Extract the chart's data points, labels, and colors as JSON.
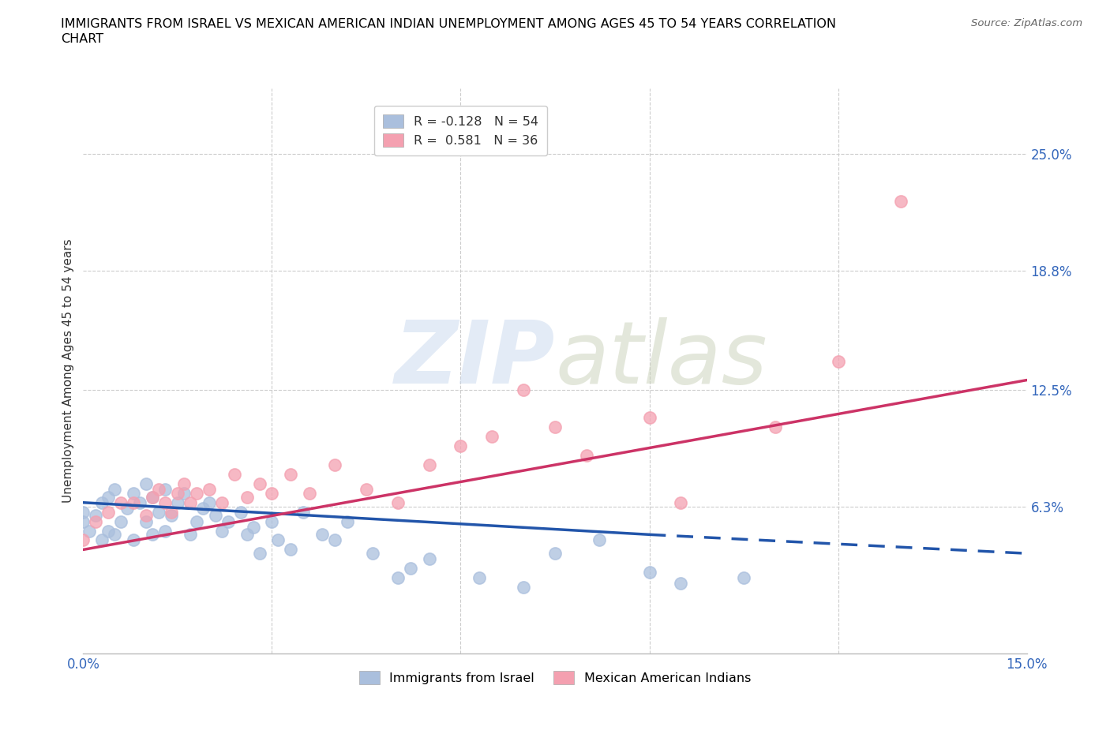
{
  "title_line1": "IMMIGRANTS FROM ISRAEL VS MEXICAN AMERICAN INDIAN UNEMPLOYMENT AMONG AGES 45 TO 54 YEARS CORRELATION",
  "title_line2": "CHART",
  "source": "Source: ZipAtlas.com",
  "ylabel_label": "Unemployment Among Ages 45 to 54 years",
  "xlim": [
    0.0,
    0.15
  ],
  "ylim": [
    -0.015,
    0.285
  ],
  "grid_color": "#cccccc",
  "watermark_zip": "ZIP",
  "watermark_atlas": "atlas",
  "legend_r1": "R = -0.128   N = 54",
  "legend_r2": "R =  0.581   N = 36",
  "legend_label1": "Immigrants from Israel",
  "legend_label2": "Mexican American Indians",
  "color_blue": "#aabfdd",
  "color_pink": "#f4a0b0",
  "line_blue": "#2255aa",
  "line_pink": "#cc3366",
  "ytick_positions": [
    0.063,
    0.125,
    0.188,
    0.25
  ],
  "ytick_labels": [
    "6.3%",
    "12.5%",
    "18.8%",
    "25.0%"
  ],
  "xtick_positions": [
    0.0,
    0.03,
    0.06,
    0.09,
    0.12,
    0.15
  ],
  "xtick_labels": [
    "0.0%",
    "",
    "",
    "",
    "",
    "15.0%"
  ],
  "israel_x": [
    0.0,
    0.0,
    0.001,
    0.002,
    0.003,
    0.003,
    0.004,
    0.004,
    0.005,
    0.005,
    0.006,
    0.007,
    0.008,
    0.008,
    0.009,
    0.01,
    0.01,
    0.011,
    0.011,
    0.012,
    0.013,
    0.013,
    0.014,
    0.015,
    0.016,
    0.017,
    0.018,
    0.019,
    0.02,
    0.021,
    0.022,
    0.023,
    0.025,
    0.026,
    0.027,
    0.028,
    0.03,
    0.031,
    0.033,
    0.035,
    0.038,
    0.04,
    0.042,
    0.046,
    0.05,
    0.052,
    0.055,
    0.063,
    0.07,
    0.075,
    0.082,
    0.09,
    0.095,
    0.105
  ],
  "israel_y": [
    0.06,
    0.055,
    0.05,
    0.058,
    0.065,
    0.045,
    0.068,
    0.05,
    0.072,
    0.048,
    0.055,
    0.062,
    0.07,
    0.045,
    0.065,
    0.075,
    0.055,
    0.068,
    0.048,
    0.06,
    0.072,
    0.05,
    0.058,
    0.065,
    0.07,
    0.048,
    0.055,
    0.062,
    0.065,
    0.058,
    0.05,
    0.055,
    0.06,
    0.048,
    0.052,
    0.038,
    0.055,
    0.045,
    0.04,
    0.06,
    0.048,
    0.045,
    0.055,
    0.038,
    0.025,
    0.03,
    0.035,
    0.025,
    0.02,
    0.038,
    0.045,
    0.028,
    0.022,
    0.025
  ],
  "mexican_x": [
    0.0,
    0.002,
    0.004,
    0.006,
    0.008,
    0.01,
    0.011,
    0.012,
    0.013,
    0.014,
    0.015,
    0.016,
    0.017,
    0.018,
    0.02,
    0.022,
    0.024,
    0.026,
    0.028,
    0.03,
    0.033,
    0.036,
    0.04,
    0.045,
    0.05,
    0.055,
    0.06,
    0.065,
    0.07,
    0.075,
    0.08,
    0.09,
    0.095,
    0.11,
    0.12,
    0.13
  ],
  "mexican_y": [
    0.045,
    0.055,
    0.06,
    0.065,
    0.065,
    0.058,
    0.068,
    0.072,
    0.065,
    0.06,
    0.07,
    0.075,
    0.065,
    0.07,
    0.072,
    0.065,
    0.08,
    0.068,
    0.075,
    0.07,
    0.08,
    0.07,
    0.085,
    0.072,
    0.065,
    0.085,
    0.095,
    0.1,
    0.125,
    0.105,
    0.09,
    0.11,
    0.065,
    0.105,
    0.14,
    0.225
  ],
  "israel_line_x0": 0.0,
  "israel_line_x_solid_end": 0.09,
  "israel_line_x_dash_end": 0.15,
  "israel_line_y0": 0.065,
  "israel_line_y_solid_end": 0.048,
  "israel_line_y_dash_end": 0.038,
  "mexican_line_x0": 0.0,
  "mexican_line_x_end": 0.15,
  "mexican_line_y0": 0.04,
  "mexican_line_y_end": 0.13
}
